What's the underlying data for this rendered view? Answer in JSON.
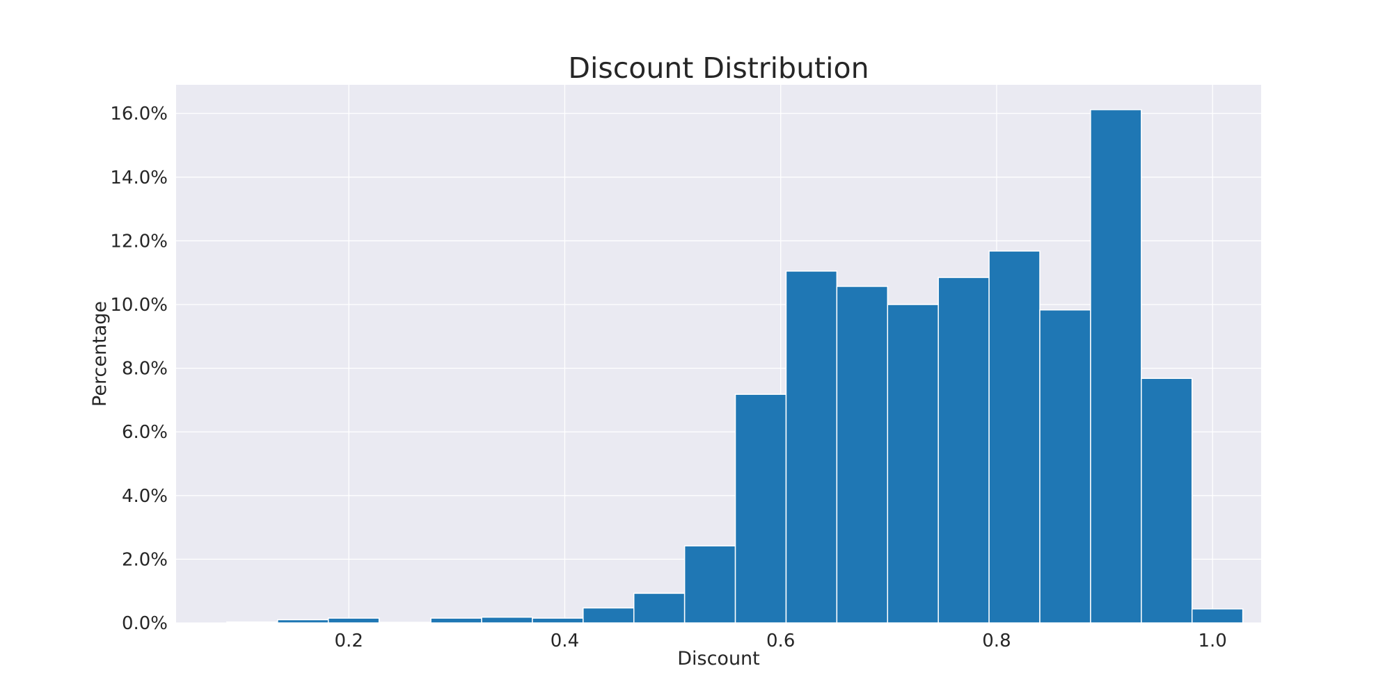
{
  "chart_data": {
    "type": "bar",
    "title": "Discount Distribution",
    "xlabel": "Discount",
    "ylabel": "Percentage",
    "xlim": [
      0.04,
      1.045
    ],
    "ylim": [
      0,
      16.9
    ],
    "x_ticks": [
      0.2,
      0.4,
      0.6,
      0.8,
      1.0
    ],
    "x_tick_labels": [
      "0.2",
      "0.4",
      "0.6",
      "0.8",
      "1.0"
    ],
    "y_ticks": [
      0,
      2,
      4,
      6,
      8,
      10,
      12,
      14,
      16
    ],
    "y_tick_labels": [
      "0.0%",
      "2.0%",
      "4.0%",
      "6.0%",
      "8.0%",
      "10.0%",
      "12.0%",
      "14.0%",
      "16.0%"
    ],
    "grid": true,
    "colors": {
      "bar": "#1f77b4",
      "bar_edge": "#ffffff",
      "plot_background": "#eaeaf2",
      "grid": "#ffffff",
      "text": "#262626"
    },
    "bins": [
      {
        "x0": 0.04,
        "x1": 0.087,
        "value": 0.0
      },
      {
        "x0": 0.087,
        "x1": 0.134,
        "value": 0.03
      },
      {
        "x0": 0.134,
        "x1": 0.181,
        "value": 0.1
      },
      {
        "x0": 0.181,
        "x1": 0.228,
        "value": 0.15
      },
      {
        "x0": 0.228,
        "x1": 0.276,
        "value": 0.02
      },
      {
        "x0": 0.276,
        "x1": 0.323,
        "value": 0.15
      },
      {
        "x0": 0.323,
        "x1": 0.37,
        "value": 0.18
      },
      {
        "x0": 0.37,
        "x1": 0.417,
        "value": 0.15
      },
      {
        "x0": 0.417,
        "x1": 0.464,
        "value": 0.47
      },
      {
        "x0": 0.464,
        "x1": 0.511,
        "value": 0.93
      },
      {
        "x0": 0.511,
        "x1": 0.558,
        "value": 2.42
      },
      {
        "x0": 0.558,
        "x1": 0.605,
        "value": 7.18
      },
      {
        "x0": 0.605,
        "x1": 0.652,
        "value": 11.05
      },
      {
        "x0": 0.652,
        "x1": 0.699,
        "value": 10.57
      },
      {
        "x0": 0.699,
        "x1": 0.746,
        "value": 10.0
      },
      {
        "x0": 0.746,
        "x1": 0.793,
        "value": 10.85
      },
      {
        "x0": 0.793,
        "x1": 0.84,
        "value": 11.68
      },
      {
        "x0": 0.84,
        "x1": 0.887,
        "value": 9.83
      },
      {
        "x0": 0.887,
        "x1": 0.934,
        "value": 16.12
      },
      {
        "x0": 0.934,
        "x1": 0.981,
        "value": 7.68
      },
      {
        "x0": 0.981,
        "x1": 1.028,
        "value": 0.44
      }
    ]
  }
}
